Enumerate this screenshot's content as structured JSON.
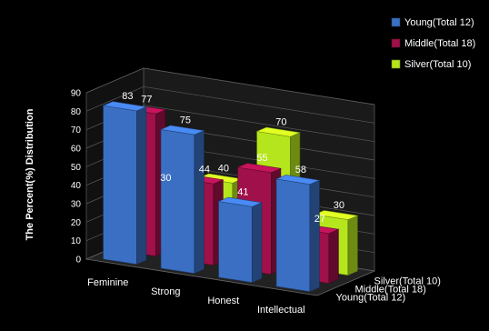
{
  "chart_data": {
    "type": "bar",
    "title": "",
    "xlabel": "",
    "ylabel": "The Percent(%) Distribution",
    "ylim": [
      0,
      90
    ],
    "yticks": [
      0,
      10,
      20,
      30,
      40,
      50,
      60,
      70,
      80,
      90
    ],
    "grid": true,
    "legend_position": "top-right",
    "categories": [
      "Feminine",
      "Strong",
      "Honest",
      "Intellectual"
    ],
    "series": [
      {
        "name": "Young(Total 12)",
        "color": "#3a6fc4",
        "values": [
          83,
          75,
          41,
          58
        ]
      },
      {
        "name": "Middle(Total 18)",
        "color": "#a0104a",
        "values": [
          77,
          44,
          55,
          27
        ]
      },
      {
        "name": "Silver(Total 10)",
        "color": "#b5e61d",
        "values": [
          30,
          40,
          70,
          30
        ]
      }
    ]
  }
}
